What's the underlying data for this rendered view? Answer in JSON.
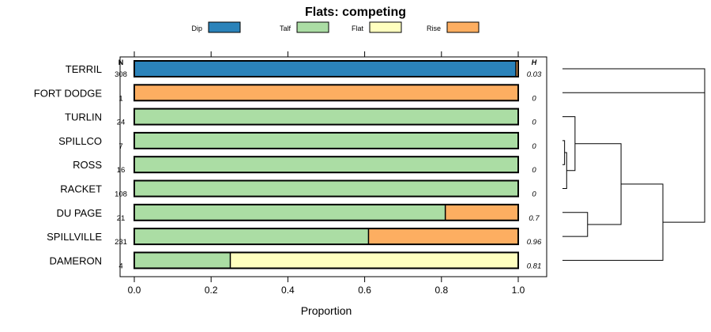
{
  "chart_data": {
    "type": "bar",
    "stacked": true,
    "orientation": "horizontal",
    "title": "Flats: competing",
    "xlabel": "Proportion",
    "ylabel": "",
    "xlim": [
      0,
      1
    ],
    "x_ticks": [
      0,
      0.2,
      0.4,
      0.6,
      0.8,
      1
    ],
    "x_tick_labels": [
      "0.0",
      "0.2",
      "0.4",
      "0.6",
      "0.8",
      "1.0"
    ],
    "legend": [
      {
        "name": "Dip",
        "color": "#2b83ba"
      },
      {
        "name": "Talf",
        "color": "#abdda4"
      },
      {
        "name": "Flat",
        "color": "#ffffbf"
      },
      {
        "name": "Rise",
        "color": "#fdae61"
      }
    ],
    "n_header": "N",
    "h_header": "H",
    "categories": [
      {
        "name": "TERRIL",
        "n": "308",
        "h": "0.03",
        "values": [
          0.994,
          0,
          0,
          0.006
        ]
      },
      {
        "name": "FORT DODGE",
        "n": "1",
        "h": "0",
        "values": [
          0,
          0,
          0,
          1
        ]
      },
      {
        "name": "TURLIN",
        "n": "24",
        "h": "0",
        "values": [
          0,
          1,
          0,
          0
        ]
      },
      {
        "name": "SPILLCO",
        "n": "7",
        "h": "0",
        "values": [
          0,
          1,
          0,
          0
        ]
      },
      {
        "name": "ROSS",
        "n": "16",
        "h": "0",
        "values": [
          0,
          1,
          0,
          0
        ]
      },
      {
        "name": "RACKET",
        "n": "108",
        "h": "0",
        "values": [
          0,
          1,
          0,
          0
        ]
      },
      {
        "name": "DU PAGE",
        "n": "21",
        "h": "0.7",
        "values": [
          0,
          0.81,
          0,
          0.19
        ]
      },
      {
        "name": "SPILLVILLE",
        "n": "231",
        "h": "0.96",
        "values": [
          0,
          0.61,
          0,
          0.39
        ]
      },
      {
        "name": "DAMERON",
        "n": "4",
        "h": "0.81",
        "values": [
          0,
          0.25,
          0.75,
          0
        ]
      }
    ],
    "dendrogram": {
      "order": [
        "TERRIL",
        "FORT DODGE",
        "TURLIN",
        "SPILLCO",
        "ROSS",
        "RACKET",
        "DU PAGE",
        "SPILLVILLE",
        "DAMERON"
      ],
      "merges": [
        {
          "a": "SPILLCO",
          "b": "ROSS",
          "height": 0.005
        },
        {
          "a": "SPILLCO+ROSS",
          "b": "RACKET",
          "height": 0.01
        },
        {
          "a": "TURLIN",
          "b": "SPILLCO+ROSS+RACKET",
          "height": 0.03
        },
        {
          "a": "DU PAGE",
          "b": "SPILLVILLE",
          "height": 0.06
        },
        {
          "a": "TURLIN+SPILLCO+ROSS+RACKET",
          "b": "DU PAGE+SPILLVILLE",
          "height": 0.14
        },
        {
          "a": "...+DU PAGE+SPILLVILLE",
          "b": "DAMERON",
          "height": 0.24
        },
        {
          "a": "...+DAMERON",
          "b": "FORT DODGE",
          "height": 0.34
        },
        {
          "a": "TERRIL",
          "b": "...+FORT DODGE",
          "height": 0.34
        }
      ],
      "max_height": 0.34
    }
  }
}
